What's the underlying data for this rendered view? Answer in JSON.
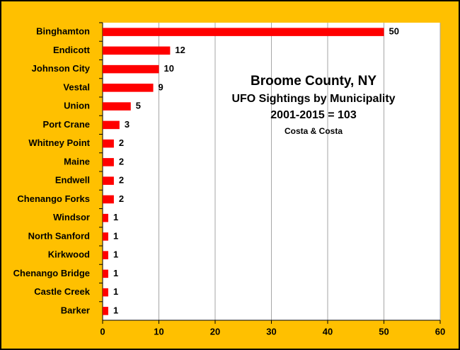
{
  "chart_data": {
    "type": "bar",
    "orientation": "horizontal",
    "title": "Broome County, NY",
    "subtitle": "UFO Sightings by Municipality",
    "annotations": [
      "2001-2015 = 103",
      "Costa & Costa"
    ],
    "categories": [
      "Binghamton",
      "Endicott",
      "Johnson City",
      "Vestal",
      "Union",
      "Port Crane",
      "Whitney Point",
      "Maine",
      "Endwell",
      "Chenango Forks",
      "Windsor",
      "North Sanford",
      "Kirkwood",
      "Chenango Bridge",
      "Castle Creek",
      "Barker"
    ],
    "values": [
      50,
      12,
      10,
      9,
      5,
      3,
      2,
      2,
      2,
      2,
      1,
      1,
      1,
      1,
      1,
      1
    ],
    "color": "#ff0000",
    "xlim": [
      0,
      60
    ],
    "xticks": [
      0,
      10,
      20,
      30,
      40,
      50,
      60
    ],
    "grid": true
  }
}
